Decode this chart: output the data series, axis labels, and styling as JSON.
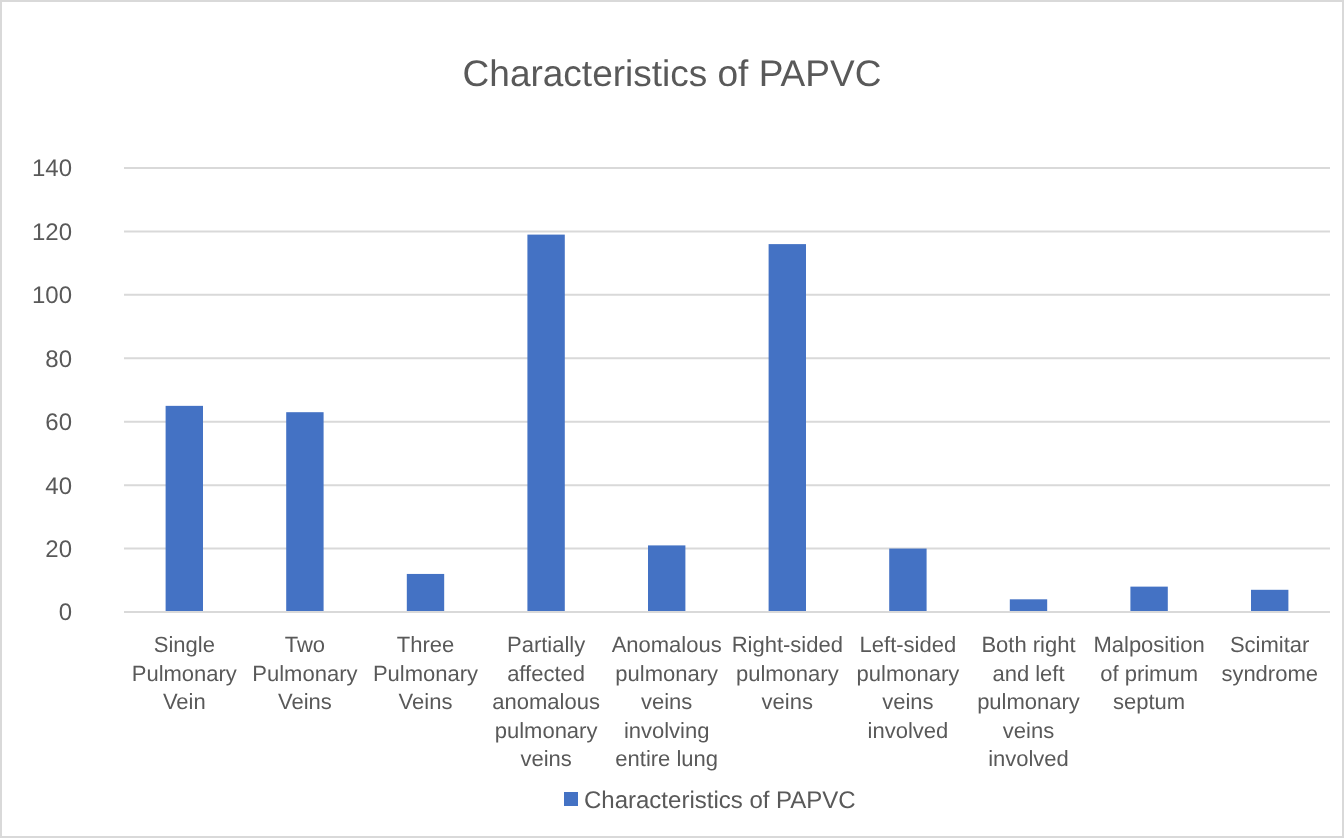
{
  "chart_data": {
    "type": "bar",
    "title": "Characteristics of PAPVC",
    "categories": [
      "Single Pulmonary Vein",
      "Two Pulmonary Veins",
      "Three Pulmonary Veins",
      "Partially affected anomalous pulmonary veins",
      "Anomalous pulmonary veins involving entire lung",
      "Right-sided pulmonary veins",
      "Left-sided pulmonary veins involved",
      "Both right and left pulmonary veins involved",
      "Malposition of primum septum",
      "Scimitar syndrome"
    ],
    "series": [
      {
        "name": "Characteristics of PAPVC",
        "color": "#4472c4",
        "values": [
          65,
          63,
          12,
          119,
          21,
          116,
          20,
          4,
          8,
          7
        ]
      }
    ],
    "ylim": [
      0,
      140
    ],
    "yticks": [
      0,
      20,
      40,
      60,
      80,
      100,
      120,
      140
    ],
    "grid": "y",
    "legend": "bottom"
  }
}
